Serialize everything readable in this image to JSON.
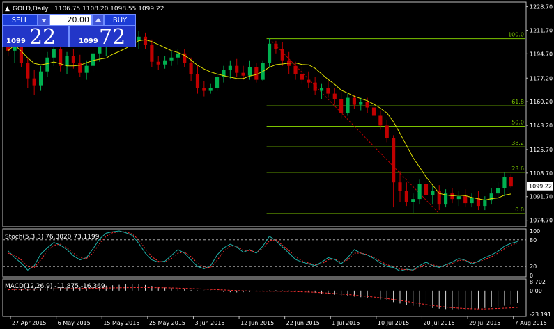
{
  "header": {
    "symbol": "GOLD,Daily",
    "ohlc": "1106.75 1108.20 1098.55 1099.22"
  },
  "trade_panel": {
    "sell_label": "SELL",
    "buy_label": "BUY",
    "lot_value": "20.00",
    "bid_prefix": "1099",
    "bid_big": "22",
    "ask_prefix": "1099",
    "ask_big": "72"
  },
  "colors": {
    "background": "#000000",
    "axis": "#c0c0c0",
    "bull_candle": "#00b050",
    "bear_candle": "#c00000",
    "moving_average": "#e0e000",
    "fibonacci": "#7cc400",
    "trendline": "#c00000",
    "price_line": "#c0c0c0",
    "stoch_main": "#20b2aa",
    "stoch_signal": "#ff3030",
    "macd_hist": "#e0e0e0",
    "macd_signal": "#ff3030",
    "panel_blue": "#1c3dd6"
  },
  "chart_data": {
    "type": "candlestick",
    "price_axis": {
      "ticks": [
        "1228.70",
        "1211.70",
        "1194.70",
        "1177.20",
        "1160.20",
        "1143.20",
        "1125.70",
        "1108.70",
        "1091.70",
        "1074.70"
      ],
      "range": [
        1070,
        1232
      ],
      "current_price": "1099.22"
    },
    "time_axis": {
      "labels": [
        "27 Apr 2015",
        "6 May 2015",
        "15 May 2015",
        "25 May 2015",
        "3 Jun 2015",
        "12 Jun 2015",
        "22 Jun 2015",
        "1 Jul 2015",
        "10 Jul 2015",
        "20 Jul 2015",
        "29 Jul 2015",
        "7 Aug 2015"
      ],
      "label_index": [
        1,
        8,
        15,
        22,
        29,
        36,
        43,
        50,
        57,
        64,
        71,
        78
      ]
    },
    "fibonacci": {
      "levels": [
        "100.0",
        "61.8",
        "50.0",
        "38.2",
        "23.6",
        "0.0"
      ],
      "prices": [
        1205.6,
        1157.2,
        1142.5,
        1127.6,
        1109.2,
        1079.5
      ]
    },
    "candles": [
      [
        1200,
        1206,
        1193,
        1197
      ],
      [
        1197,
        1209,
        1188,
        1205
      ],
      [
        1205,
        1208,
        1185,
        1188
      ],
      [
        1188,
        1192,
        1170,
        1177
      ],
      [
        1177,
        1183,
        1165,
        1172
      ],
      [
        1172,
        1186,
        1168,
        1182
      ],
      [
        1182,
        1196,
        1178,
        1192
      ],
      [
        1192,
        1200,
        1186,
        1198
      ],
      [
        1198,
        1202,
        1182,
        1186
      ],
      [
        1186,
        1196,
        1180,
        1193
      ],
      [
        1193,
        1198,
        1184,
        1188
      ],
      [
        1188,
        1194,
        1178,
        1181
      ],
      [
        1181,
        1190,
        1176,
        1186
      ],
      [
        1186,
        1198,
        1182,
        1195
      ],
      [
        1195,
        1204,
        1189,
        1200
      ],
      [
        1200,
        1207,
        1193,
        1204
      ],
      [
        1204,
        1212,
        1200,
        1208
      ],
      [
        1208,
        1213,
        1203,
        1209
      ],
      [
        1209,
        1214,
        1203,
        1206
      ],
      [
        1206,
        1211,
        1201,
        1204
      ],
      [
        1204,
        1211,
        1198,
        1207
      ],
      [
        1207,
        1210,
        1198,
        1201
      ],
      [
        1201,
        1205,
        1185,
        1189
      ],
      [
        1189,
        1193,
        1183,
        1187
      ],
      [
        1187,
        1193,
        1184,
        1190
      ],
      [
        1190,
        1197,
        1186,
        1192
      ],
      [
        1192,
        1198,
        1187,
        1195
      ],
      [
        1195,
        1198,
        1185,
        1188
      ],
      [
        1188,
        1192,
        1175,
        1180
      ],
      [
        1180,
        1186,
        1166,
        1170
      ],
      [
        1170,
        1175,
        1164,
        1168
      ],
      [
        1168,
        1173,
        1166,
        1170
      ],
      [
        1170,
        1182,
        1168,
        1178
      ],
      [
        1178,
        1186,
        1174,
        1183
      ],
      [
        1183,
        1190,
        1177,
        1186
      ],
      [
        1186,
        1191,
        1178,
        1181
      ],
      [
        1181,
        1186,
        1176,
        1179
      ],
      [
        1179,
        1190,
        1176,
        1185
      ],
      [
        1185,
        1188,
        1174,
        1176
      ],
      [
        1176,
        1190,
        1175,
        1188
      ],
      [
        1188,
        1206,
        1185,
        1202
      ],
      [
        1202,
        1204,
        1195,
        1198
      ],
      [
        1198,
        1203,
        1186,
        1190
      ],
      [
        1190,
        1196,
        1180,
        1186
      ],
      [
        1186,
        1189,
        1176,
        1180
      ],
      [
        1180,
        1185,
        1173,
        1176
      ],
      [
        1176,
        1182,
        1170,
        1174
      ],
      [
        1174,
        1178,
        1165,
        1168
      ],
      [
        1168,
        1173,
        1162,
        1170
      ],
      [
        1170,
        1175,
        1163,
        1166
      ],
      [
        1166,
        1170,
        1158,
        1162
      ],
      [
        1162,
        1167,
        1148,
        1152
      ],
      [
        1152,
        1166,
        1150,
        1163
      ],
      [
        1163,
        1165,
        1155,
        1158
      ],
      [
        1158,
        1163,
        1154,
        1160
      ],
      [
        1160,
        1163,
        1152,
        1156
      ],
      [
        1156,
        1162,
        1148,
        1150
      ],
      [
        1150,
        1154,
        1140,
        1143
      ],
      [
        1143,
        1147,
        1131,
        1134
      ],
      [
        1134,
        1136,
        1084,
        1102
      ],
      [
        1102,
        1110,
        1088,
        1096
      ],
      [
        1096,
        1102,
        1085,
        1088
      ],
      [
        1088,
        1094,
        1080,
        1090
      ],
      [
        1090,
        1104,
        1086,
        1101
      ],
      [
        1101,
        1104,
        1090,
        1093
      ],
      [
        1093,
        1099,
        1086,
        1096
      ],
      [
        1096,
        1100,
        1082,
        1086
      ],
      [
        1086,
        1097,
        1084,
        1094
      ],
      [
        1094,
        1098,
        1087,
        1090
      ],
      [
        1090,
        1096,
        1085,
        1092
      ],
      [
        1092,
        1097,
        1084,
        1087
      ],
      [
        1087,
        1094,
        1084,
        1091
      ],
      [
        1091,
        1096,
        1082,
        1085
      ],
      [
        1085,
        1092,
        1082,
        1089
      ],
      [
        1089,
        1098,
        1086,
        1094
      ],
      [
        1094,
        1102,
        1089,
        1098
      ],
      [
        1098,
        1109,
        1092,
        1106
      ],
      [
        1106,
        1108,
        1098,
        1099
      ]
    ],
    "stochastic": {
      "label": "Stoch(5,3,3) 76.3020 73.1199",
      "levels": [
        "80",
        "20"
      ],
      "axis_labels": [
        "100",
        "80",
        "20",
        "0"
      ],
      "main": [
        55,
        40,
        28,
        12,
        22,
        48,
        62,
        74,
        68,
        58,
        44,
        35,
        40,
        60,
        82,
        95,
        98,
        100,
        96,
        90,
        72,
        50,
        35,
        30,
        32,
        45,
        58,
        50,
        35,
        20,
        15,
        22,
        46,
        62,
        70,
        64,
        52,
        58,
        50,
        66,
        88,
        78,
        64,
        50,
        36,
        30,
        26,
        22,
        30,
        40,
        36,
        26,
        40,
        58,
        50,
        46,
        38,
        28,
        20,
        18,
        10,
        14,
        12,
        22,
        30,
        22,
        18,
        24,
        30,
        38,
        34,
        26,
        32,
        40,
        46,
        54,
        66,
        72,
        76
      ],
      "signal": [
        50,
        45,
        35,
        20,
        18,
        35,
        55,
        68,
        70,
        62,
        50,
        40,
        38,
        50,
        72,
        88,
        96,
        98,
        98,
        93,
        80,
        60,
        42,
        32,
        30,
        38,
        50,
        52,
        42,
        28,
        18,
        18,
        34,
        54,
        66,
        66,
        56,
        56,
        52,
        60,
        78,
        80,
        68,
        56,
        42,
        33,
        28,
        24,
        26,
        35,
        37,
        30,
        35,
        50,
        50,
        47,
        41,
        32,
        24,
        20,
        14,
        13,
        12,
        18,
        26,
        24,
        20,
        22,
        27,
        34,
        34,
        29,
        30,
        36,
        42,
        50,
        60,
        68,
        73
      ]
    },
    "macd": {
      "label": "MACD(12,26,9) -11.875 -16.369",
      "axis_labels": [
        "8.702",
        "0.00",
        "-23.191"
      ],
      "histogram": [
        1.2,
        1.5,
        1.8,
        2.0,
        2.2,
        2.4,
        2.6,
        2.8,
        3.0,
        3.2,
        3.4,
        3.6,
        3.8,
        4.0,
        4.4,
        4.8,
        5.2,
        5.6,
        6.0,
        6.2,
        6.0,
        5.4,
        4.6,
        3.8,
        3.0,
        2.4,
        1.8,
        1.2,
        0.6,
        0.2,
        -0.4,
        -0.8,
        -1.2,
        -1.4,
        -1.6,
        -1.8,
        -1.6,
        -1.2,
        -0.8,
        -0.4,
        0.2,
        0.4,
        0.2,
        -0.2,
        -0.6,
        -1.0,
        -1.6,
        -2.2,
        -2.8,
        -3.4,
        -4.0,
        -4.6,
        -5.2,
        -5.8,
        -6.4,
        -7.0,
        -7.8,
        -8.6,
        -9.6,
        -11.2,
        -12.6,
        -13.8,
        -14.8,
        -15.6,
        -16.4,
        -17.0,
        -17.6,
        -18.0,
        -18.2,
        -18.4,
        -18.2,
        -18.0,
        -17.6,
        -17.0,
        -16.4,
        -15.6,
        -14.8,
        -13.4,
        -11.875
      ],
      "signal": [
        1.0,
        1.1,
        1.2,
        1.3,
        1.4,
        1.5,
        1.6,
        1.7,
        1.8,
        1.9,
        2.0,
        2.1,
        2.2,
        2.3,
        2.4,
        2.5,
        2.6,
        2.7,
        2.8,
        2.9,
        3.0,
        3.0,
        2.9,
        2.8,
        2.7,
        2.6,
        2.4,
        2.2,
        2.0,
        1.8,
        1.5,
        1.2,
        0.9,
        0.6,
        0.3,
        0.0,
        -0.2,
        -0.4,
        -0.5,
        -0.6,
        -0.6,
        -0.6,
        -0.7,
        -0.8,
        -1.0,
        -1.2,
        -1.4,
        -1.7,
        -2.0,
        -2.4,
        -2.8,
        -3.3,
        -3.8,
        -4.4,
        -5.0,
        -5.6,
        -6.3,
        -7.0,
        -7.8,
        -8.7,
        -9.6,
        -10.6,
        -11.6,
        -12.6,
        -13.6,
        -14.5,
        -15.3,
        -16.0,
        -16.6,
        -17.1,
        -17.5,
        -17.7,
        -17.8,
        -17.8,
        -17.6,
        -17.4,
        -17.1,
        -16.8,
        -16.369
      ]
    }
  }
}
